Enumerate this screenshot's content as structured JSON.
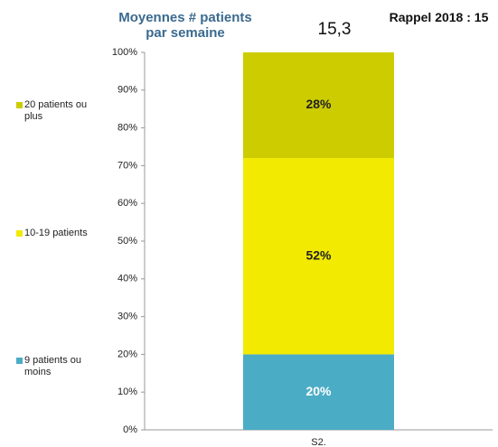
{
  "chart_data": {
    "type": "stacked_bar",
    "title": "Moyennes # patients par semaine",
    "annotations": [
      "15,3",
      "Rappel 2018 : 15"
    ],
    "categories": [
      "S2."
    ],
    "series": [
      {
        "name": "9 patients ou moins",
        "color": "#4bacc6",
        "values": [
          20
        ],
        "value_labels": [
          "20%"
        ]
      },
      {
        "name": "10-19 patients",
        "color": "#f2ea00",
        "values": [
          52
        ],
        "value_labels": [
          "52%"
        ]
      },
      {
        "name": "20 patients ou plus",
        "color": "#cccc00",
        "values": [
          28
        ],
        "value_labels": [
          "28%"
        ]
      }
    ],
    "ylim": [
      0,
      100
    ],
    "yticks": [
      {
        "value": 0,
        "label": "0%"
      },
      {
        "value": 10,
        "label": "10%"
      },
      {
        "value": 20,
        "label": "20%"
      },
      {
        "value": 30,
        "label": "30%"
      },
      {
        "value": 40,
        "label": "40%"
      },
      {
        "value": 50,
        "label": "50%"
      },
      {
        "value": 60,
        "label": "60%"
      },
      {
        "value": 70,
        "label": "70%"
      },
      {
        "value": 80,
        "label": "80%"
      },
      {
        "value": 90,
        "label": "90%"
      },
      {
        "value": 100,
        "label": "100%"
      }
    ],
    "legend": "left"
  }
}
